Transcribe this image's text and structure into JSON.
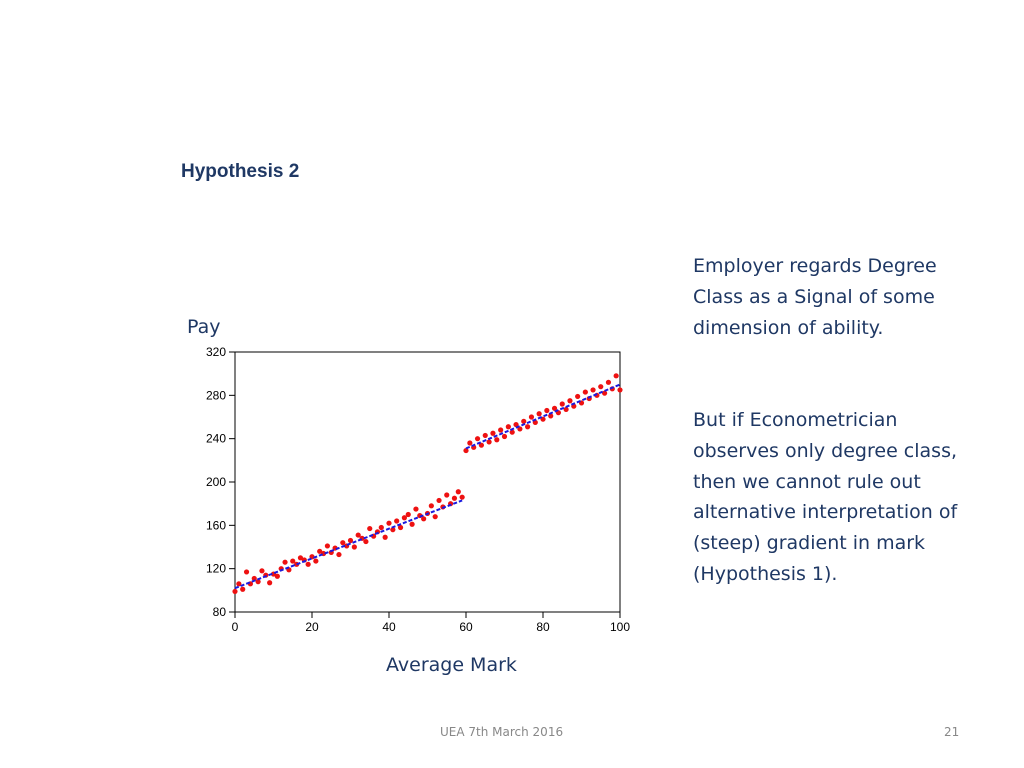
{
  "slide": {
    "heading": "Hypothesis 2",
    "body_paragraph_1": "Employer regards Degree Class as a Signal of some dimension of ability.",
    "body_paragraph_2": "But if Econometrician observes only degree class, then we cannot rule out alternative interpretation of (steep) gradient in mark (Hypothesis 1).",
    "footer_center": "UEA 7th March 2016",
    "page_number": "21"
  },
  "chart_data": {
    "type": "scatter",
    "title": "",
    "xlabel": "Average Mark",
    "ylabel": "Pay",
    "xlim": [
      0,
      100
    ],
    "ylim": [
      80,
      320
    ],
    "x_ticks": [
      "0",
      "20",
      "40",
      "60",
      "80",
      "100"
    ],
    "y_ticks": [
      "80",
      "120",
      "160",
      "200",
      "240",
      "280",
      "320"
    ],
    "grid": false,
    "colors": {
      "points": "#ee1111",
      "fit": "#1a1adf",
      "axes": "#000000"
    },
    "points": [
      [
        0,
        99
      ],
      [
        1,
        106
      ],
      [
        2,
        101
      ],
      [
        3,
        117
      ],
      [
        4,
        106
      ],
      [
        5,
        111
      ],
      [
        6,
        108
      ],
      [
        7,
        118
      ],
      [
        8,
        114
      ],
      [
        9,
        107
      ],
      [
        10,
        115
      ],
      [
        11,
        113
      ],
      [
        12,
        120
      ],
      [
        13,
        126
      ],
      [
        14,
        119
      ],
      [
        15,
        127
      ],
      [
        16,
        124
      ],
      [
        17,
        130
      ],
      [
        18,
        128
      ],
      [
        19,
        124
      ],
      [
        20,
        131
      ],
      [
        21,
        127
      ],
      [
        22,
        136
      ],
      [
        23,
        134
      ],
      [
        24,
        141
      ],
      [
        25,
        135
      ],
      [
        26,
        139
      ],
      [
        27,
        133
      ],
      [
        28,
        144
      ],
      [
        29,
        141
      ],
      [
        30,
        146
      ],
      [
        31,
        140
      ],
      [
        32,
        151
      ],
      [
        33,
        148
      ],
      [
        34,
        145
      ],
      [
        35,
        157
      ],
      [
        36,
        150
      ],
      [
        37,
        154
      ],
      [
        38,
        158
      ],
      [
        39,
        149
      ],
      [
        40,
        162
      ],
      [
        41,
        156
      ],
      [
        42,
        164
      ],
      [
        43,
        158
      ],
      [
        44,
        167
      ],
      [
        45,
        170
      ],
      [
        46,
        161
      ],
      [
        47,
        175
      ],
      [
        48,
        169
      ],
      [
        49,
        166
      ],
      [
        50,
        171
      ],
      [
        51,
        178
      ],
      [
        52,
        168
      ],
      [
        53,
        183
      ],
      [
        54,
        177
      ],
      [
        55,
        188
      ],
      [
        56,
        180
      ],
      [
        57,
        185
      ],
      [
        58,
        191
      ],
      [
        59,
        186
      ],
      [
        60,
        229
      ],
      [
        61,
        236
      ],
      [
        62,
        232
      ],
      [
        63,
        240
      ],
      [
        64,
        234
      ],
      [
        65,
        243
      ],
      [
        66,
        237
      ],
      [
        67,
        245
      ],
      [
        68,
        239
      ],
      [
        69,
        248
      ],
      [
        70,
        242
      ],
      [
        71,
        251
      ],
      [
        72,
        246
      ],
      [
        73,
        253
      ],
      [
        74,
        249
      ],
      [
        75,
        256
      ],
      [
        76,
        251
      ],
      [
        77,
        260
      ],
      [
        78,
        255
      ],
      [
        79,
        263
      ],
      [
        80,
        258
      ],
      [
        81,
        266
      ],
      [
        82,
        261
      ],
      [
        83,
        268
      ],
      [
        84,
        264
      ],
      [
        85,
        272
      ],
      [
        86,
        267
      ],
      [
        87,
        275
      ],
      [
        88,
        270
      ],
      [
        89,
        279
      ],
      [
        90,
        273
      ],
      [
        91,
        283
      ],
      [
        92,
        277
      ],
      [
        93,
        285
      ],
      [
        94,
        280
      ],
      [
        95,
        288
      ],
      [
        96,
        282
      ],
      [
        97,
        292
      ],
      [
        98,
        286
      ],
      [
        99,
        298
      ],
      [
        100,
        285
      ]
    ],
    "fit_segments": [
      {
        "x": [
          0,
          59
        ],
        "y": [
          102,
          183
        ]
      },
      {
        "x": [
          60,
          100
        ],
        "y": [
          231,
          290
        ]
      }
    ]
  }
}
